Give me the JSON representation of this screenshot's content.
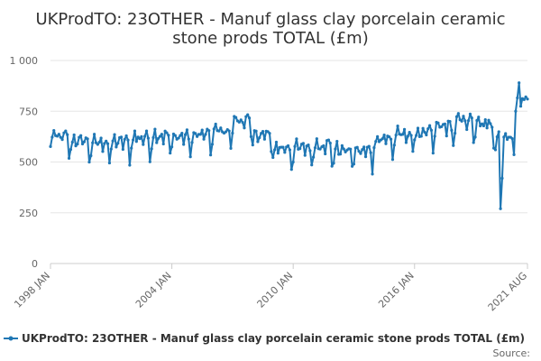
{
  "chart_data": {
    "type": "line",
    "title_line1": "UKProdTO: 23OTHER - Manuf glass clay porcelain ceramic",
    "title_line2": "stone prods TOTAL (£m)",
    "xlabel": "",
    "ylabel": "",
    "ylim": [
      0,
      1000
    ],
    "yticks": [
      "0",
      "250",
      "500",
      "750",
      "1 000"
    ],
    "ytick_values": [
      0,
      250,
      500,
      750,
      1000
    ],
    "xticks": [
      "1998 JAN",
      "2004 JAN",
      "2010 JAN",
      "2016 JAN",
      "2021 AUG"
    ],
    "xtick_values": [
      "1998-01",
      "2004-01",
      "2010-01",
      "2016-01",
      "2021-08"
    ],
    "x_start": "1998-01",
    "x_end": "2021-08",
    "legend_position": "bottom",
    "source_label": "Source:",
    "series": [
      {
        "name": "UKProdTO: 23OTHER - Manuf glass clay porcelain ceramic stone prods TOTAL (£m)",
        "color": "#1f77b4",
        "annual_levels": [
          {
            "year": 1998,
            "value": 610
          },
          {
            "year": 1999,
            "value": 590
          },
          {
            "year": 2000,
            "value": 580
          },
          {
            "year": 2001,
            "value": 585
          },
          {
            "year": 2002,
            "value": 605
          },
          {
            "year": 2003,
            "value": 615
          },
          {
            "year": 2004,
            "value": 610
          },
          {
            "year": 2005,
            "value": 620
          },
          {
            "year": 2006,
            "value": 640
          },
          {
            "year": 2007,
            "value": 690
          },
          {
            "year": 2008,
            "value": 620
          },
          {
            "year": 2009,
            "value": 555
          },
          {
            "year": 2010,
            "value": 555
          },
          {
            "year": 2011,
            "value": 570
          },
          {
            "year": 2012,
            "value": 545
          },
          {
            "year": 2013,
            "value": 540
          },
          {
            "year": 2014,
            "value": 600
          },
          {
            "year": 2015,
            "value": 620
          },
          {
            "year": 2016,
            "value": 630
          },
          {
            "year": 2017,
            "value": 660
          },
          {
            "year": 2018,
            "value": 690
          },
          {
            "year": 2019,
            "value": 670
          },
          {
            "year": 2020,
            "value": 610
          },
          {
            "year": 2021,
            "value": 790
          }
        ],
        "monthly_pattern": [
          -40,
          20,
          40,
          0,
          10,
          20,
          25,
          -15,
          25,
          30,
          15,
          -85
        ],
        "notable_points": [
          {
            "date": "2020-04",
            "value": 270
          },
          {
            "date": "2020-05",
            "value": 420
          },
          {
            "date": "2021-03",
            "value": 890
          }
        ],
        "last_value": 810
      }
    ]
  }
}
